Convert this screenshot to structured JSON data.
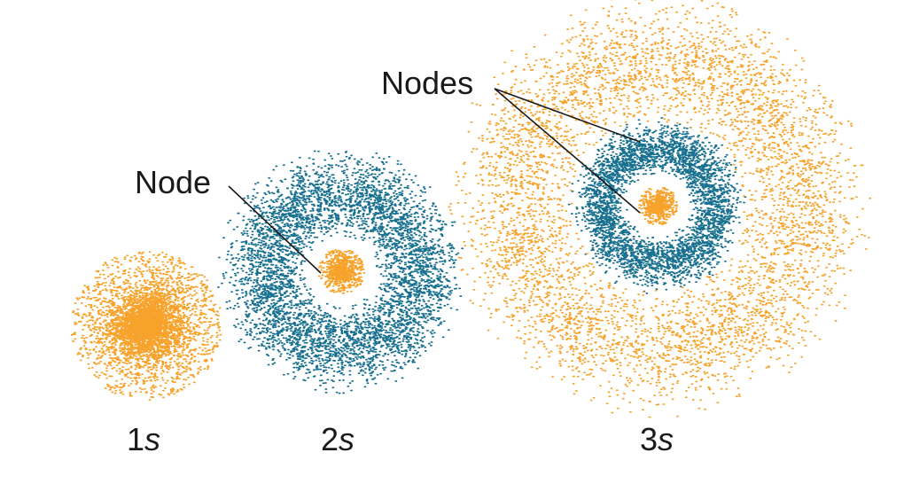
{
  "colors": {
    "orange": "#f7a22a",
    "teal": "#17708f",
    "background": "#ffffff",
    "line": "#1a1a1a"
  },
  "orbitals": [
    {
      "number": "1",
      "letter": "s",
      "label": "1s",
      "nodes": 0
    },
    {
      "number": "2",
      "letter": "s",
      "label": "2s",
      "nodes": 1
    },
    {
      "number": "3",
      "letter": "s",
      "label": "3s",
      "nodes": 2
    }
  ],
  "callouts": {
    "node": "Node",
    "nodes": "Nodes"
  }
}
